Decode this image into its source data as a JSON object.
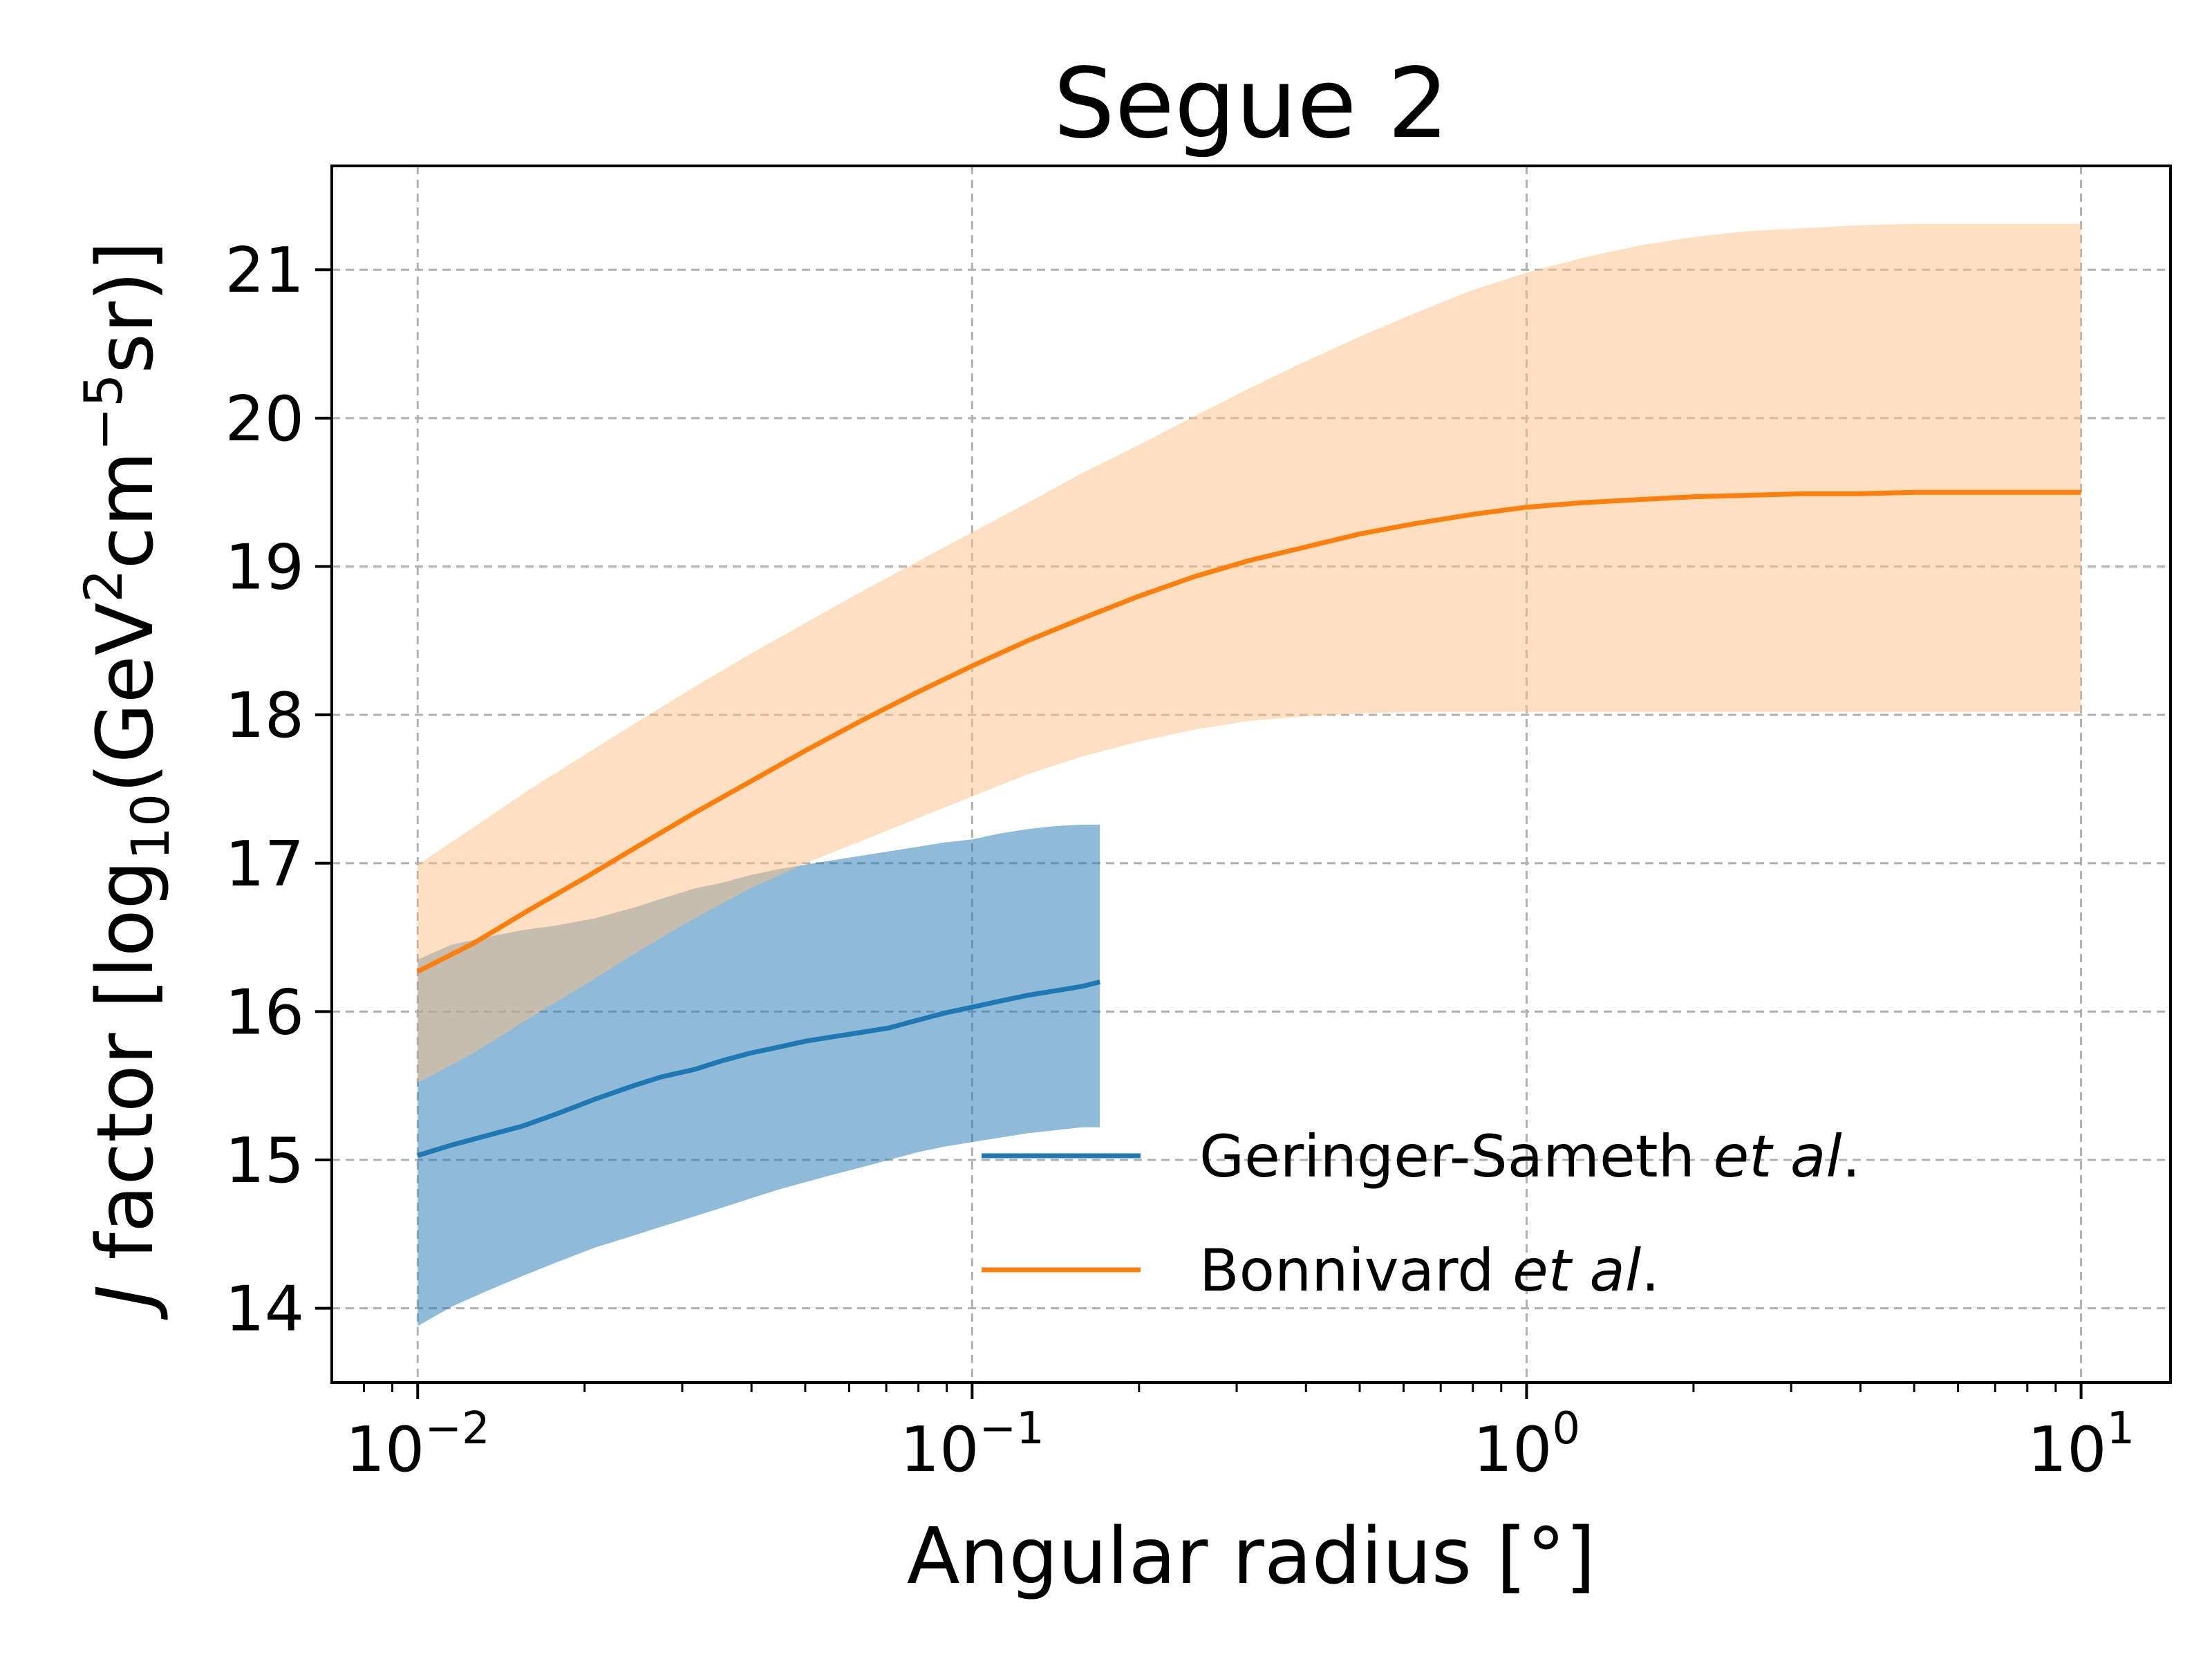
{
  "chart_data": {
    "type": "line",
    "title": "Segue 2",
    "xlabel": "Angular radius [°]",
    "ylabel": {
      "prefix": "J",
      "main": " factor [log",
      "sub": "10",
      "unit_a": "(GeV",
      "sup_a": "2",
      "unit_b": "cm",
      "sup_b": "−5",
      "unit_c": "sr)]"
    },
    "xscale": "log",
    "xlim": [
      0.007,
      14.5
    ],
    "ylim": [
      13.5,
      21.7
    ],
    "x_ticks": [
      {
        "value": 0.01,
        "base": "10",
        "exp": "−2"
      },
      {
        "value": 0.1,
        "base": "10",
        "exp": "−1"
      },
      {
        "value": 1,
        "base": "10",
        "exp": "0"
      },
      {
        "value": 10,
        "base": "10",
        "exp": "1"
      }
    ],
    "y_ticks": [
      14,
      15,
      16,
      17,
      18,
      19,
      20,
      21
    ],
    "grid": true,
    "legend_position": "lower-right",
    "series": [
      {
        "name": "Geringer-Sameth",
        "name_italic": "et al",
        "name_suffix": ".",
        "color": "#1f77b4",
        "band_color": "#1f77b4",
        "x": [
          0.01,
          0.0115,
          0.0132,
          0.0155,
          0.0178,
          0.0209,
          0.0245,
          0.0275,
          0.0316,
          0.0355,
          0.0398,
          0.0447,
          0.05,
          0.056,
          0.0631,
          0.0708,
          0.0794,
          0.0891,
          0.1,
          0.112,
          0.126,
          0.141,
          0.158,
          0.17
        ],
        "y": [
          15.03,
          15.1,
          15.16,
          15.23,
          15.31,
          15.41,
          15.5,
          15.56,
          15.61,
          15.67,
          15.72,
          15.76,
          15.8,
          15.83,
          15.86,
          15.89,
          15.94,
          15.99,
          16.03,
          16.07,
          16.11,
          16.14,
          16.17,
          16.2
        ],
        "band_upper": [
          16.35,
          16.45,
          16.5,
          16.55,
          16.58,
          16.63,
          16.7,
          16.76,
          16.83,
          16.87,
          16.92,
          16.96,
          16.99,
          17.02,
          17.05,
          17.08,
          17.11,
          17.14,
          17.16,
          17.2,
          17.23,
          17.25,
          17.26,
          17.26
        ],
        "band_lower": [
          13.88,
          14.01,
          14.11,
          14.22,
          14.31,
          14.41,
          14.49,
          14.55,
          14.62,
          14.68,
          14.74,
          14.8,
          14.85,
          14.9,
          14.95,
          15.0,
          15.05,
          15.09,
          15.12,
          15.15,
          15.18,
          15.2,
          15.22,
          15.22
        ]
      },
      {
        "name": "Bonnivard",
        "name_italic": "et al",
        "name_suffix": ".",
        "color": "#ff7f0e",
        "band_color": "#ffbf86",
        "x": [
          0.01,
          0.0126,
          0.0158,
          0.02,
          0.0251,
          0.0316,
          0.0398,
          0.0501,
          0.0631,
          0.0794,
          0.1,
          0.126,
          0.158,
          0.2,
          0.251,
          0.316,
          0.398,
          0.501,
          0.631,
          0.794,
          1.0,
          1.26,
          1.58,
          2.0,
          2.51,
          3.16,
          3.98,
          5.01,
          6.31,
          7.94,
          10.0
        ],
        "y": [
          16.27,
          16.46,
          16.68,
          16.9,
          17.12,
          17.34,
          17.55,
          17.76,
          17.96,
          18.15,
          18.33,
          18.5,
          18.65,
          18.8,
          18.93,
          19.04,
          19.13,
          19.22,
          19.29,
          19.35,
          19.4,
          19.43,
          19.45,
          19.47,
          19.48,
          19.49,
          19.49,
          19.5,
          19.5,
          19.5,
          19.5
        ],
        "band_upper": [
          16.99,
          17.24,
          17.49,
          17.73,
          17.96,
          18.19,
          18.41,
          18.62,
          18.83,
          19.03,
          19.23,
          19.43,
          19.63,
          19.82,
          20.01,
          20.2,
          20.38,
          20.55,
          20.71,
          20.86,
          20.98,
          21.08,
          21.16,
          21.22,
          21.26,
          21.28,
          21.3,
          21.31,
          21.31,
          21.31,
          21.31
        ],
        "band_lower": [
          15.52,
          15.72,
          15.95,
          16.18,
          16.41,
          16.63,
          16.83,
          17.0,
          17.15,
          17.3,
          17.45,
          17.6,
          17.72,
          17.82,
          17.9,
          17.96,
          17.99,
          18.01,
          18.02,
          18.02,
          18.02,
          18.02,
          18.02,
          18.02,
          18.02,
          18.02,
          18.02,
          18.02,
          18.02,
          18.02,
          18.02
        ]
      }
    ]
  }
}
